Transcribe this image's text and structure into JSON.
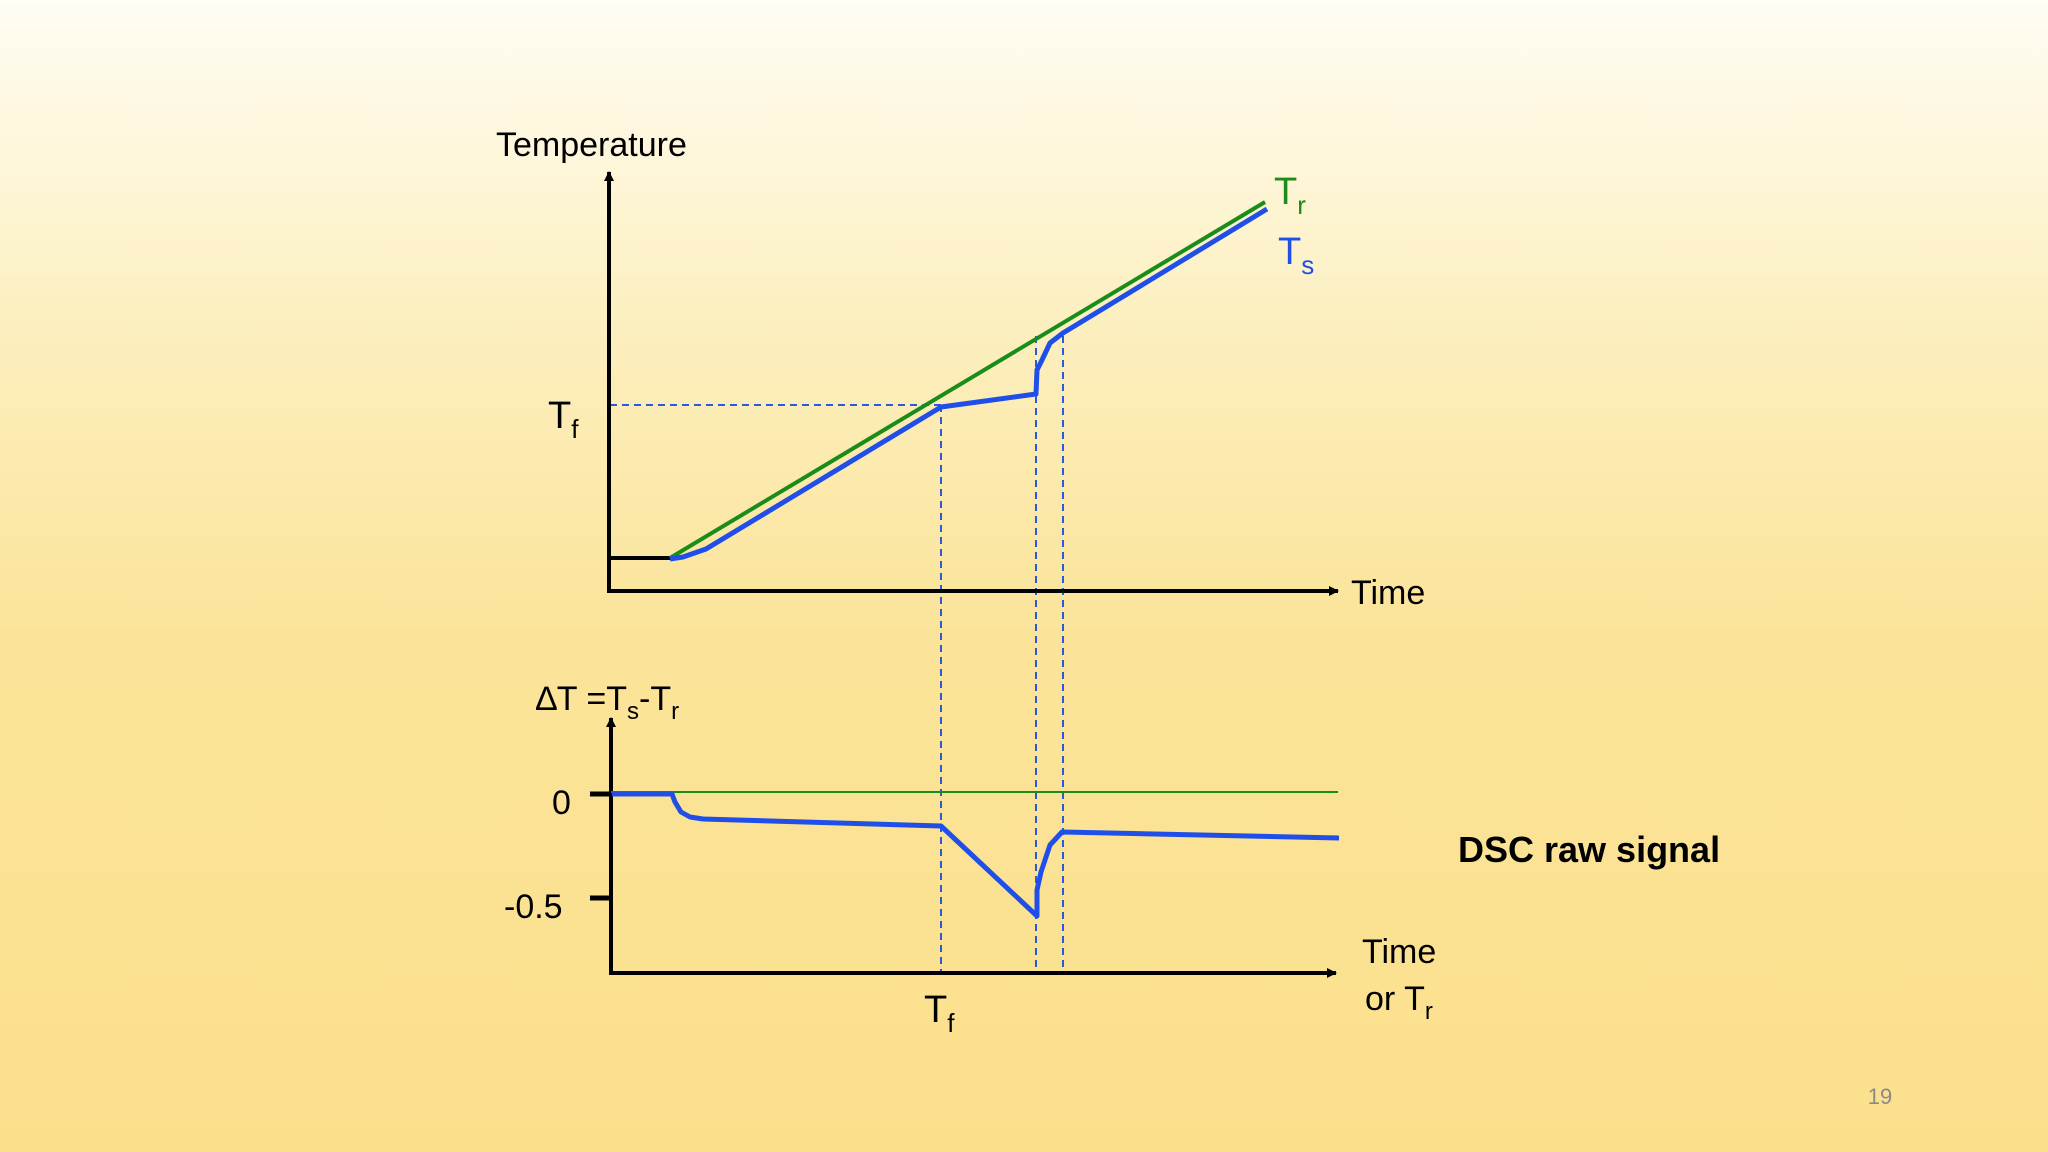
{
  "top_chart": {
    "y_axis_label": "Temperature",
    "x_axis_label": "Time",
    "tf_label": {
      "main": "T",
      "sub": "f"
    },
    "series_reference": {
      "main": "T",
      "sub": "r"
    },
    "series_sample": {
      "main": "T",
      "sub": "s"
    }
  },
  "bottom_chart": {
    "y_axis_label": {
      "prefix": "∆T =T",
      "sub1": "s",
      "mid": "-T",
      "sub2": "r"
    },
    "ticks": [
      "0",
      "-0.5"
    ],
    "x_axis_label": {
      "line1": "Time",
      "line2_main": "or T",
      "line2_sub": "r"
    },
    "tf_label": {
      "main": "T",
      "sub": "f"
    },
    "signal_label": "DSC raw signal"
  },
  "colors": {
    "reference": "#1a8c1a",
    "sample": "#1f4fe8",
    "guide": "#2a5ad8",
    "axis": "#000000"
  },
  "page_number": "19"
}
